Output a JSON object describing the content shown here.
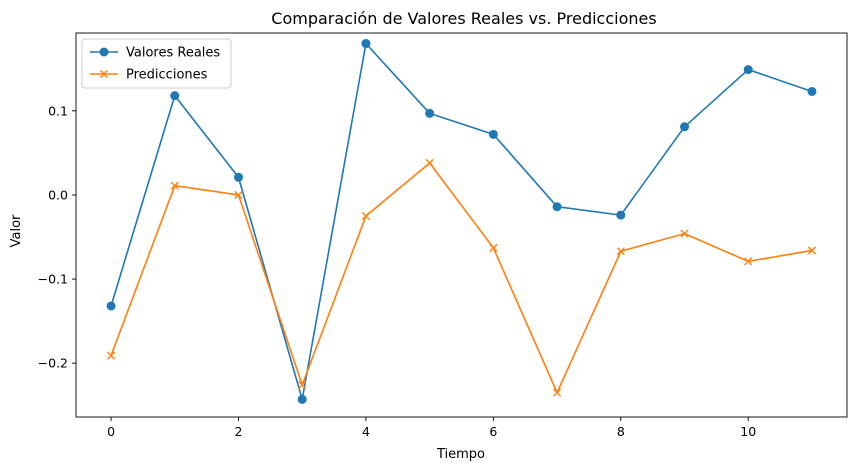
{
  "chart_data": {
    "type": "line",
    "title": "Comparación de Valores Reales vs. Predicciones",
    "xlabel": "Tiempo",
    "ylabel": "Valor",
    "x": [
      0,
      1,
      2,
      3,
      4,
      5,
      6,
      7,
      8,
      9,
      10,
      11
    ],
    "xlim": [
      -0.55,
      11.55
    ],
    "ylim": [
      -0.264,
      0.1925
    ],
    "xticks": [
      0,
      2,
      4,
      6,
      8,
      10
    ],
    "xtick_labels": [
      "0",
      "2",
      "4",
      "6",
      "8",
      "10"
    ],
    "yticks": [
      -0.2,
      -0.1,
      0.0,
      0.1
    ],
    "ytick_labels": [
      "−0.2",
      "−0.1",
      "0.0",
      "0.1"
    ],
    "grid": false,
    "legend_position": "top-left",
    "series": [
      {
        "name": "Valores Reales",
        "color": "#1f77b4",
        "marker": "circle",
        "values": [
          -0.132,
          0.118,
          0.021,
          -0.243,
          0.18,
          0.097,
          0.072,
          -0.014,
          -0.024,
          0.081,
          0.149,
          0.123
        ]
      },
      {
        "name": "Predicciones",
        "color": "#ff7f0e",
        "marker": "x",
        "values": [
          -0.191,
          0.011,
          0.0,
          -0.226,
          -0.025,
          0.038,
          -0.063,
          -0.235,
          -0.067,
          -0.046,
          -0.079,
          -0.066
        ]
      }
    ]
  }
}
